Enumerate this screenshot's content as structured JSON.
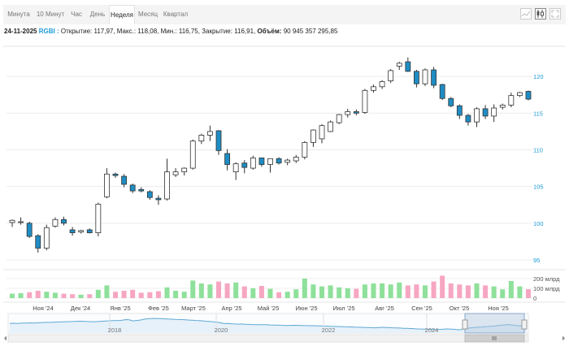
{
  "tabs": [
    {
      "label": "Минута",
      "active": false
    },
    {
      "label": "10 Минут",
      "active": false
    },
    {
      "label": "Час",
      "active": false
    },
    {
      "label": "День",
      "active": false
    },
    {
      "label": "Неделя",
      "active": true
    },
    {
      "label": "Месяц",
      "active": false
    },
    {
      "label": "Квартал",
      "active": false
    }
  ],
  "tools": [
    {
      "name": "area-chart-icon",
      "active": false
    },
    {
      "name": "candlestick-chart-icon",
      "active": true
    },
    {
      "name": "fullscreen-icon",
      "active": false
    }
  ],
  "info": {
    "date": "24-11-2025",
    "ticker": "RGBI",
    "open_label": "Открытие:",
    "open": "117,97",
    "high_label": "Макс.:",
    "high": "118,08",
    "low_label": "Мин.:",
    "low": "116,75",
    "close_label": "Закрытие:",
    "close": "116,91",
    "volume_label": "Объём",
    "volume": "90 945 357 295,85"
  },
  "colors": {
    "up_fill": "#ffffff",
    "down_fill": "#1f8dc4",
    "candle_border": "#333333",
    "volume_up": "#8ee09a",
    "volume_down": "#f6a6c2",
    "navigator_line": "#5fa8d3",
    "navigator_mask": "#b4c8de",
    "axis_text": "#1a9ad6"
  },
  "chart_data": {
    "type": "candlestick",
    "interval": "week",
    "ylim": [
      95,
      124
    ],
    "y_ticks": [
      "95",
      "100",
      "105",
      "110",
      "115",
      "120"
    ],
    "x_labels": [
      "Ноя '24",
      "Дек '24",
      "Янв '25",
      "Фев '25",
      "Март '25",
      "Апр '25",
      "Май '25",
      "Июн '25",
      "Июл '25",
      "Авг '25",
      "Сен '25",
      "Окт '25",
      "Ноя '25"
    ],
    "volume_ticks": [
      "0",
      "100 млрд",
      "200 млрд"
    ],
    "volume_max": 250,
    "candles": [
      {
        "o": 100.1,
        "h": 100.5,
        "l": 99.5,
        "c": 100.4,
        "v": 45
      },
      {
        "o": 100.2,
        "h": 100.8,
        "l": 99.8,
        "c": 100.2,
        "v": 50
      },
      {
        "o": 100.0,
        "h": 100.2,
        "l": 98.0,
        "c": 98.2,
        "v": 60
      },
      {
        "o": 98.3,
        "h": 98.5,
        "l": 96.0,
        "c": 96.6,
        "v": 75
      },
      {
        "o": 96.6,
        "h": 99.8,
        "l": 96.3,
        "c": 99.4,
        "v": 65
      },
      {
        "o": 99.6,
        "h": 100.8,
        "l": 99.4,
        "c": 100.5,
        "v": 55
      },
      {
        "o": 100.5,
        "h": 100.9,
        "l": 99.7,
        "c": 100.0,
        "v": 45
      },
      {
        "o": 99.1,
        "h": 99.5,
        "l": 98.3,
        "c": 98.7,
        "v": 40
      },
      {
        "o": 98.8,
        "h": 99.1,
        "l": 98.6,
        "c": 99.0,
        "v": 35
      },
      {
        "o": 99.1,
        "h": 99.3,
        "l": 98.6,
        "c": 98.7,
        "v": 40
      },
      {
        "o": 98.7,
        "h": 102.8,
        "l": 98.2,
        "c": 102.6,
        "v": 85
      },
      {
        "o": 103.6,
        "h": 107.5,
        "l": 103.4,
        "c": 106.7,
        "v": 130
      },
      {
        "o": 106.7,
        "h": 106.9,
        "l": 106.2,
        "c": 106.5,
        "v": 65
      },
      {
        "o": 106.4,
        "h": 106.7,
        "l": 104.9,
        "c": 105.3,
        "v": 75
      },
      {
        "o": 105.2,
        "h": 105.4,
        "l": 104.1,
        "c": 104.4,
        "v": 85
      },
      {
        "o": 104.6,
        "h": 104.9,
        "l": 104.2,
        "c": 104.4,
        "v": 55
      },
      {
        "o": 104.3,
        "h": 104.5,
        "l": 103.2,
        "c": 103.5,
        "v": 60
      },
      {
        "o": 103.4,
        "h": 103.8,
        "l": 102.5,
        "c": 103.2,
        "v": 70
      },
      {
        "o": 103.3,
        "h": 108.8,
        "l": 103.1,
        "c": 107.0,
        "v": 110
      },
      {
        "o": 106.6,
        "h": 107.5,
        "l": 106.3,
        "c": 107.0,
        "v": 75
      },
      {
        "o": 107.0,
        "h": 107.6,
        "l": 106.5,
        "c": 107.5,
        "v": 65
      },
      {
        "o": 107.5,
        "h": 111.4,
        "l": 107.3,
        "c": 111.2,
        "v": 180
      },
      {
        "o": 111.2,
        "h": 112.2,
        "l": 110.8,
        "c": 112.0,
        "v": 150
      },
      {
        "o": 112.0,
        "h": 113.3,
        "l": 111.2,
        "c": 112.5,
        "v": 140
      },
      {
        "o": 112.6,
        "h": 112.7,
        "l": 109.3,
        "c": 109.9,
        "v": 170
      },
      {
        "o": 109.5,
        "h": 110.1,
        "l": 107.2,
        "c": 108.0,
        "v": 150
      },
      {
        "o": 107.0,
        "h": 108.3,
        "l": 105.9,
        "c": 108.1,
        "v": 160
      },
      {
        "o": 108.2,
        "h": 108.6,
        "l": 106.8,
        "c": 107.6,
        "v": 120
      },
      {
        "o": 107.5,
        "h": 109.2,
        "l": 107.3,
        "c": 108.9,
        "v": 100
      },
      {
        "o": 108.9,
        "h": 108.9,
        "l": 107.7,
        "c": 108.0,
        "v": 125
      },
      {
        "o": 108.0,
        "h": 108.8,
        "l": 106.9,
        "c": 108.8,
        "v": 95
      },
      {
        "o": 108.8,
        "h": 109.0,
        "l": 108.0,
        "c": 108.2,
        "v": 60
      },
      {
        "o": 108.3,
        "h": 108.8,
        "l": 107.9,
        "c": 108.6,
        "v": 65
      },
      {
        "o": 108.5,
        "h": 109.3,
        "l": 108.2,
        "c": 109.0,
        "v": 90
      },
      {
        "o": 109.0,
        "h": 111.2,
        "l": 108.7,
        "c": 111.0,
        "v": 200
      },
      {
        "o": 111.0,
        "h": 112.8,
        "l": 110.4,
        "c": 112.7,
        "v": 140
      },
      {
        "o": 111.5,
        "h": 113.5,
        "l": 110.9,
        "c": 113.3,
        "v": 120
      },
      {
        "o": 112.5,
        "h": 114.0,
        "l": 112.4,
        "c": 113.8,
        "v": 130
      },
      {
        "o": 113.7,
        "h": 114.9,
        "l": 113.5,
        "c": 114.8,
        "v": 110
      },
      {
        "o": 114.8,
        "h": 115.6,
        "l": 114.4,
        "c": 115.2,
        "v": 100
      },
      {
        "o": 115.2,
        "h": 115.5,
        "l": 114.7,
        "c": 115.0,
        "v": 95
      },
      {
        "o": 115.1,
        "h": 118.3,
        "l": 114.9,
        "c": 118.1,
        "v": 140
      },
      {
        "o": 118.1,
        "h": 118.9,
        "l": 117.8,
        "c": 118.6,
        "v": 150
      },
      {
        "o": 118.6,
        "h": 119.5,
        "l": 118.3,
        "c": 119.3,
        "v": 150
      },
      {
        "o": 119.4,
        "h": 121.0,
        "l": 119.1,
        "c": 120.8,
        "v": 140
      },
      {
        "o": 121.4,
        "h": 122.0,
        "l": 120.9,
        "c": 121.8,
        "v": 160
      },
      {
        "o": 122.0,
        "h": 122.6,
        "l": 120.6,
        "c": 120.7,
        "v": 130
      },
      {
        "o": 120.7,
        "h": 120.9,
        "l": 118.5,
        "c": 119.0,
        "v": 140
      },
      {
        "o": 119.0,
        "h": 121.1,
        "l": 118.7,
        "c": 120.9,
        "v": 130
      },
      {
        "o": 120.9,
        "h": 121.3,
        "l": 118.4,
        "c": 118.8,
        "v": 170
      },
      {
        "o": 118.9,
        "h": 119.0,
        "l": 116.8,
        "c": 117.0,
        "v": 230
      },
      {
        "o": 117.0,
        "h": 117.2,
        "l": 115.8,
        "c": 116.0,
        "v": 150
      },
      {
        "o": 116.0,
        "h": 116.2,
        "l": 114.2,
        "c": 114.7,
        "v": 140
      },
      {
        "o": 114.7,
        "h": 114.9,
        "l": 113.3,
        "c": 113.8,
        "v": 130
      },
      {
        "o": 113.8,
        "h": 115.8,
        "l": 113.1,
        "c": 115.6,
        "v": 150
      },
      {
        "o": 115.6,
        "h": 116.1,
        "l": 114.2,
        "c": 114.6,
        "v": 130
      },
      {
        "o": 114.6,
        "h": 116.2,
        "l": 113.8,
        "c": 115.7,
        "v": 120
      },
      {
        "o": 115.8,
        "h": 116.3,
        "l": 115.5,
        "c": 116.1,
        "v": 90
      },
      {
        "o": 116.1,
        "h": 117.8,
        "l": 115.8,
        "c": 117.4,
        "v": 175
      },
      {
        "o": 117.4,
        "h": 117.9,
        "l": 117.2,
        "c": 117.8,
        "v": 120
      },
      {
        "o": 117.97,
        "h": 118.08,
        "l": 116.75,
        "c": 116.91,
        "v": 91
      }
    ],
    "navigator": {
      "x_labels": [
        "2018",
        "2020",
        "2022",
        "2024"
      ],
      "series": [
        127,
        127.5,
        127,
        128,
        128.5,
        129,
        129.5,
        129,
        130,
        131,
        131.5,
        132,
        132.5,
        133,
        134,
        134.5,
        135,
        135.5,
        136,
        137,
        137.5,
        137,
        136,
        135.5,
        135,
        136,
        137,
        138,
        139,
        140,
        140.5,
        141,
        142,
        145,
        144,
        139,
        141,
        143,
        146,
        149,
        150,
        151,
        150.5,
        150,
        149,
        148,
        147,
        146,
        145.5,
        145,
        144,
        143,
        142,
        141,
        140,
        139,
        137,
        136,
        134.5,
        133,
        130,
        126,
        127,
        125.5,
        124,
        123.5,
        124,
        123,
        122,
        121.5,
        121,
        120.5,
        121,
        120.5,
        119.5,
        119,
        118.5,
        118,
        117.5,
        117,
        117.5,
        118,
        117.5,
        117,
        116.5,
        116,
        116,
        115.5,
        115,
        114.5,
        114,
        113,
        112.5,
        112,
        111.5,
        111,
        110.5,
        110,
        109,
        108.5,
        108,
        107.5,
        107,
        106.5,
        106,
        107,
        108,
        107.5,
        106.5,
        106,
        105.5,
        104.5,
        103.5,
        103,
        102.5,
        101.5,
        100.5,
        100,
        99.5,
        99,
        98,
        97.5,
        98,
        99,
        100.5,
        100,
        99.5,
        97.5,
        96.5,
        100,
        103.5,
        105.5,
        107,
        108.5,
        109.5,
        111,
        112,
        113.5,
        115,
        117,
        118.5,
        120,
        121.5,
        119,
        117,
        115,
        116,
        117.5
      ]
    }
  }
}
